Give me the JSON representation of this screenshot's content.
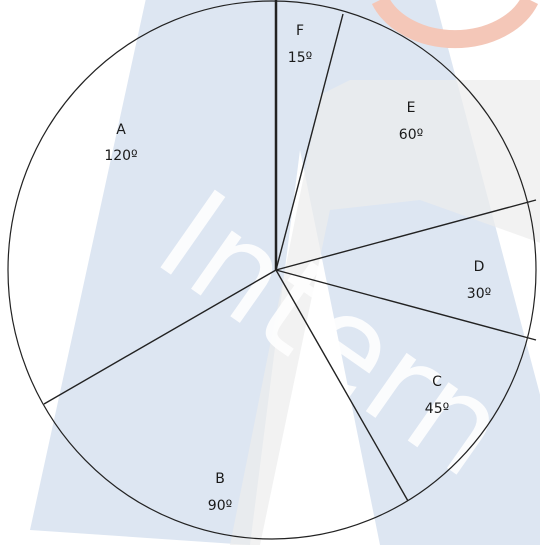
{
  "watermark": {
    "text": "Intern"
  },
  "sectors": [
    {
      "letter": "A",
      "angle": "120º"
    },
    {
      "letter": "B",
      "angle": "90º"
    },
    {
      "letter": "C",
      "angle": "45º"
    },
    {
      "letter": "D",
      "angle": "30º"
    },
    {
      "letter": "E",
      "angle": "60º"
    },
    {
      "letter": "F",
      "angle": "15º"
    }
  ]
}
